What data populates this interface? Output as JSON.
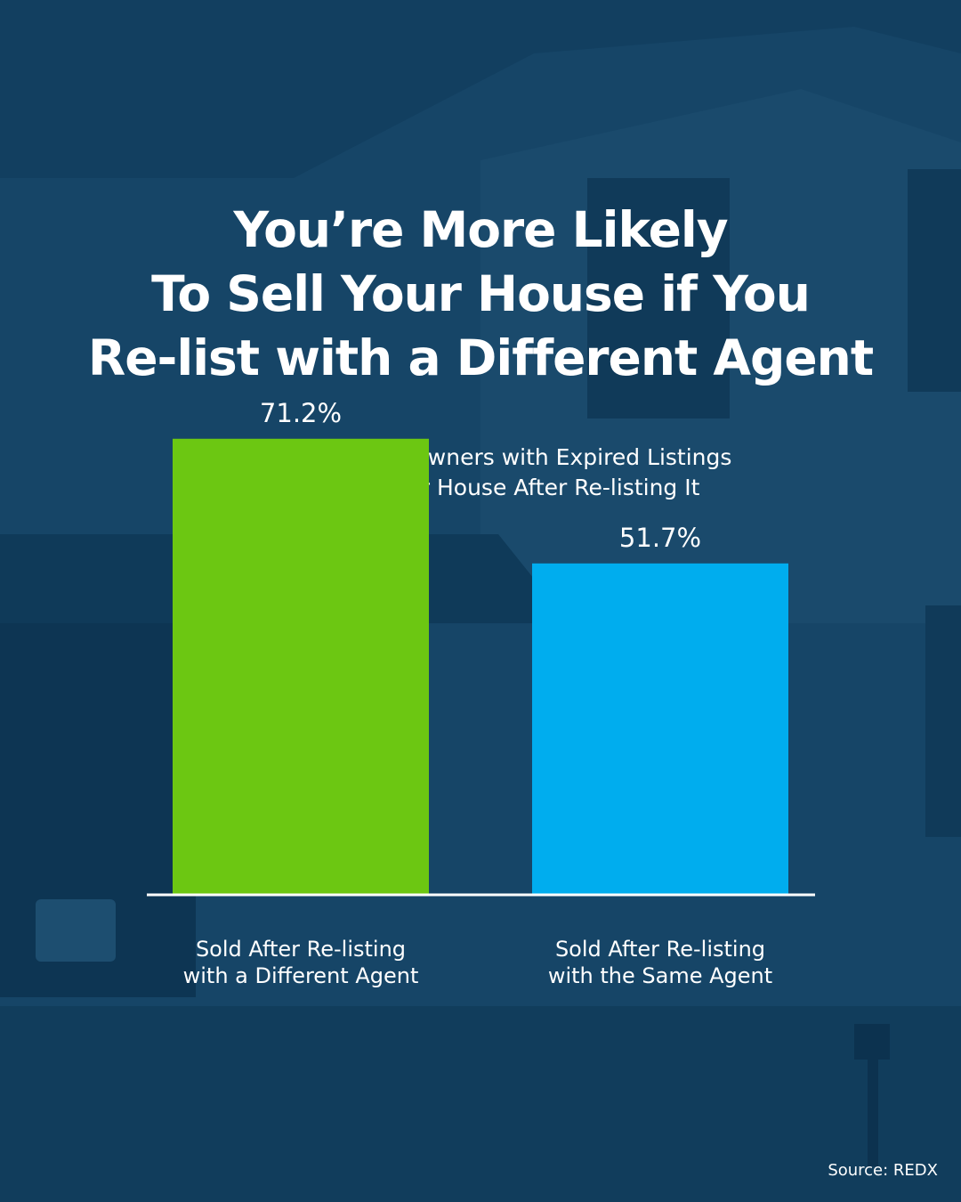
{
  "title_lines": [
    "You’re More Likely",
    "To Sell Your House if You",
    "Re-list with a Different Agent"
  ],
  "subtitle_lines": [
    "Percent of Homeowners with Expired Listings",
    "Who Sold Their House After Re-listing It"
  ],
  "source": "Source: REDX",
  "colors": {
    "background": "#123f60",
    "different_agent": "#6cc712",
    "same_agent": "#00adee",
    "text": "#ffffff"
  },
  "chart_data": {
    "type": "bar",
    "title": "Percent of Homeowners with Expired Listings Who Sold Their House After Re-listing It",
    "categories": [
      [
        "Sold After Re-listing",
        "with a Different Agent"
      ],
      [
        "Sold After Re-listing",
        "with the Same Agent"
      ]
    ],
    "values": [
      71.2,
      51.7
    ],
    "value_labels": [
      "71.2%",
      "51.7%"
    ],
    "bar_colors": [
      "#6cc712",
      "#00adee"
    ],
    "ylim": [
      0,
      100
    ],
    "grid": false,
    "legend": "none"
  }
}
